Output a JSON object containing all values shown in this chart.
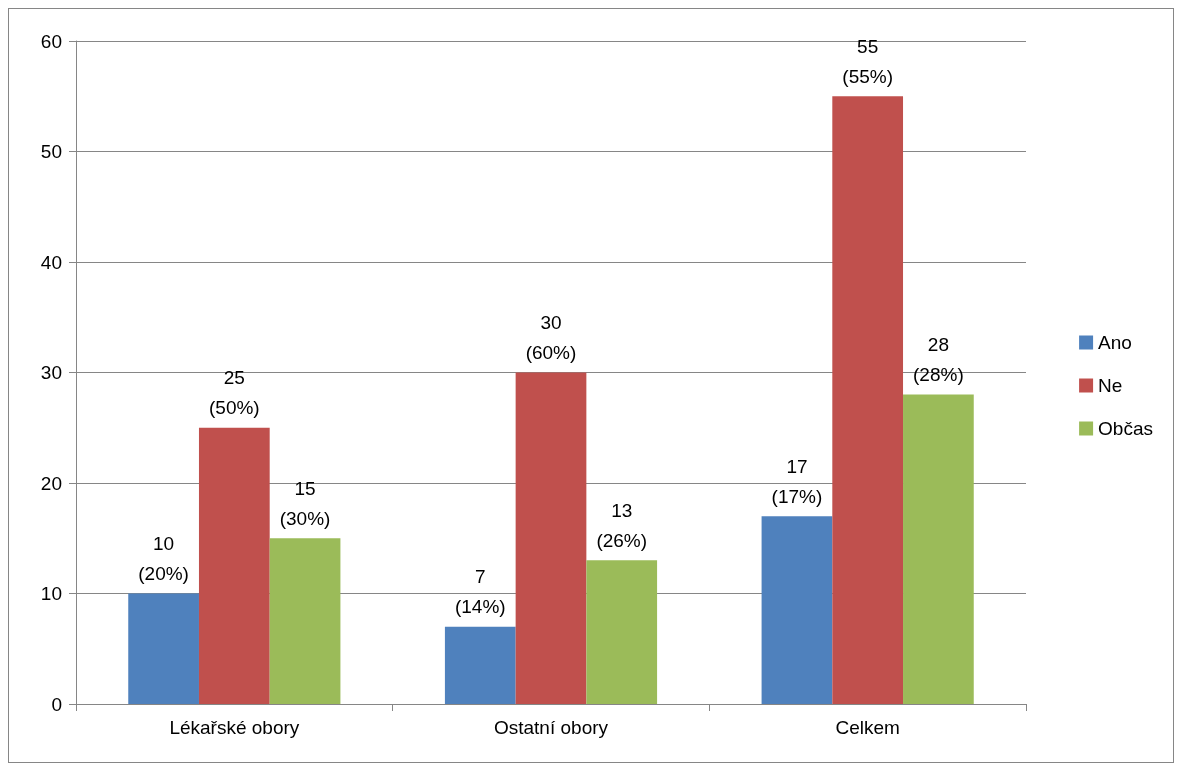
{
  "chart_data": {
    "type": "bar",
    "categories": [
      "Lékařské obory",
      "Ostatní obory",
      "Celkem"
    ],
    "series": [
      {
        "name": "Ano",
        "color": "#4f81bd",
        "values": [
          10,
          7,
          17
        ],
        "value_labels": [
          "10\n(20%)",
          "7\n(14%)",
          "17\n(17%)"
        ]
      },
      {
        "name": "Ne",
        "color": "#c0504d",
        "values": [
          25,
          30,
          55
        ],
        "value_labels": [
          "25\n(50%)",
          "30\n(60%)",
          "55\n(55%)"
        ]
      },
      {
        "name": "Občas",
        "color": "#9bbb59",
        "values": [
          15,
          13,
          28
        ],
        "value_labels": [
          "15\n(30%)",
          "13\n(26%)",
          "28\n(28%)"
        ]
      }
    ],
    "ylim": [
      0,
      60
    ],
    "yticks": [
      0,
      10,
      20,
      30,
      40,
      50,
      60
    ],
    "grid": "y",
    "legend": "right"
  }
}
